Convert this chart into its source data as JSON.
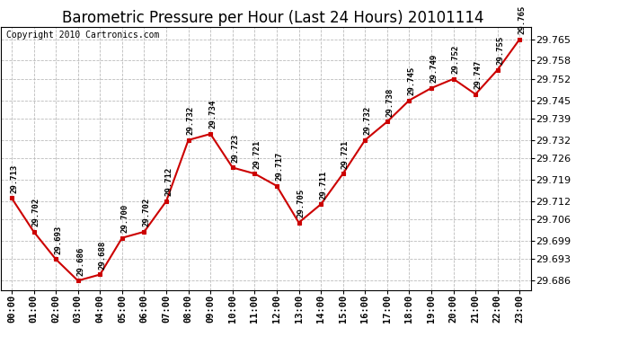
{
  "title": "Barometric Pressure per Hour (Last 24 Hours) 20101114",
  "copyright": "Copyright 2010 Cartronics.com",
  "hours": [
    "00:00",
    "01:00",
    "02:00",
    "03:00",
    "04:00",
    "05:00",
    "06:00",
    "07:00",
    "08:00",
    "09:00",
    "10:00",
    "11:00",
    "12:00",
    "13:00",
    "14:00",
    "15:00",
    "16:00",
    "17:00",
    "18:00",
    "19:00",
    "20:00",
    "21:00",
    "22:00",
    "23:00"
  ],
  "values": [
    29.713,
    29.702,
    29.693,
    29.686,
    29.688,
    29.7,
    29.702,
    29.712,
    29.732,
    29.734,
    29.723,
    29.721,
    29.717,
    29.705,
    29.711,
    29.721,
    29.732,
    29.738,
    29.745,
    29.749,
    29.752,
    29.747,
    29.755,
    29.765
  ],
  "line_color": "#cc0000",
  "marker_color": "#cc0000",
  "marker_face": "#cc0000",
  "background_color": "#ffffff",
  "grid_color": "#bbbbbb",
  "yticks": [
    29.686,
    29.693,
    29.699,
    29.706,
    29.712,
    29.719,
    29.726,
    29.732,
    29.739,
    29.745,
    29.752,
    29.758,
    29.765
  ],
  "ylim_min": 29.683,
  "ylim_max": 29.769,
  "title_fontsize": 12,
  "copyright_fontsize": 7,
  "label_fontsize": 6.5
}
